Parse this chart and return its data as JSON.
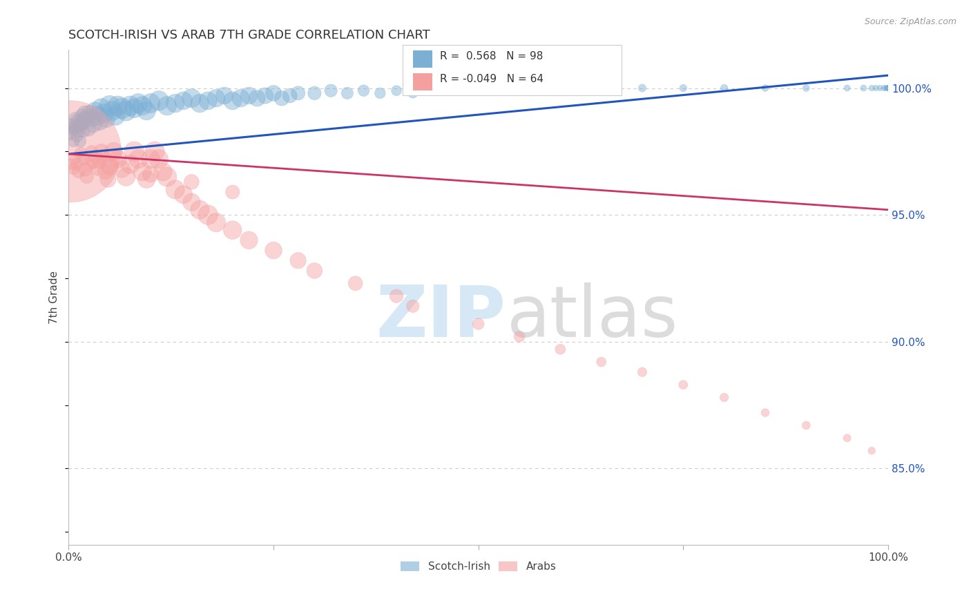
{
  "title": "SCOTCH-IRISH VS ARAB 7TH GRADE CORRELATION CHART",
  "source": "Source: ZipAtlas.com",
  "ylabel": "7th Grade",
  "y_labels": [
    "85.0%",
    "90.0%",
    "95.0%",
    "100.0%"
  ],
  "y_label_vals": [
    0.85,
    0.9,
    0.95,
    1.0
  ],
  "legend_blue_label": "Scotch-Irish",
  "legend_pink_label": "Arabs",
  "r_blue": 0.568,
  "n_blue": 98,
  "r_pink": -0.049,
  "n_pink": 64,
  "blue_color": "#7BAFD4",
  "pink_color": "#F4A0A0",
  "blue_line_color": "#2255BB",
  "pink_line_color": "#CC3366",
  "xlim": [
    0.0,
    1.0
  ],
  "ylim": [
    0.82,
    1.015
  ],
  "blue_trend_x": [
    0.0,
    1.0
  ],
  "blue_trend_y": [
    0.974,
    1.005
  ],
  "pink_trend_x": [
    0.0,
    1.0
  ],
  "pink_trend_y": [
    0.974,
    0.952
  ],
  "blue_x": [
    0.002,
    0.003,
    0.004,
    0.005,
    0.006,
    0.007,
    0.008,
    0.009,
    0.01,
    0.011,
    0.012,
    0.013,
    0.014,
    0.015,
    0.016,
    0.017,
    0.018,
    0.019,
    0.02,
    0.022,
    0.024,
    0.026,
    0.028,
    0.03,
    0.032,
    0.035,
    0.038,
    0.04,
    0.043,
    0.046,
    0.05,
    0.053,
    0.057,
    0.06,
    0.065,
    0.07,
    0.075,
    0.08,
    0.085,
    0.09,
    0.095,
    0.1,
    0.11,
    0.12,
    0.13,
    0.14,
    0.15,
    0.16,
    0.17,
    0.18,
    0.19,
    0.2,
    0.21,
    0.22,
    0.23,
    0.24,
    0.25,
    0.26,
    0.27,
    0.28,
    0.3,
    0.32,
    0.34,
    0.36,
    0.38,
    0.4,
    0.42,
    0.44,
    0.46,
    0.48,
    0.5,
    0.55,
    0.6,
    0.65,
    0.7,
    0.75,
    0.8,
    0.85,
    0.9,
    0.95,
    0.97,
    0.98,
    0.985,
    0.99,
    0.995,
    0.997,
    0.998,
    0.999,
    1.0,
    1.0,
    1.0,
    1.0,
    1.0,
    1.0,
    1.0,
    1.0,
    1.0,
    1.0
  ],
  "blue_y": [
    0.982,
    0.984,
    0.986,
    0.983,
    0.979,
    0.985,
    0.988,
    0.984,
    0.981,
    0.987,
    0.985,
    0.983,
    0.979,
    0.986,
    0.989,
    0.986,
    0.983,
    0.988,
    0.99,
    0.988,
    0.984,
    0.99,
    0.988,
    0.986,
    0.991,
    0.989,
    0.987,
    0.992,
    0.99,
    0.988,
    0.993,
    0.991,
    0.989,
    0.993,
    0.992,
    0.991,
    0.993,
    0.992,
    0.994,
    0.993,
    0.991,
    0.994,
    0.995,
    0.993,
    0.994,
    0.995,
    0.996,
    0.994,
    0.995,
    0.996,
    0.997,
    0.995,
    0.996,
    0.997,
    0.996,
    0.997,
    0.998,
    0.996,
    0.997,
    0.998,
    0.998,
    0.999,
    0.998,
    0.999,
    0.998,
    0.999,
    0.998,
    0.999,
    1.0,
    0.999,
    1.0,
    1.0,
    1.0,
    1.0,
    1.0,
    1.0,
    1.0,
    1.0,
    1.0,
    1.0,
    1.0,
    1.0,
    1.0,
    1.0,
    1.0,
    1.0,
    1.0,
    1.0,
    1.0,
    1.0,
    1.0,
    1.0,
    1.0,
    1.0,
    1.0,
    1.0,
    1.0,
    1.0
  ],
  "blue_s": [
    25,
    20,
    18,
    16,
    20,
    22,
    25,
    28,
    22,
    30,
    28,
    25,
    22,
    35,
    30,
    28,
    25,
    32,
    38,
    40,
    35,
    42,
    45,
    50,
    48,
    55,
    52,
    60,
    55,
    50,
    65,
    58,
    55,
    60,
    65,
    62,
    60,
    55,
    58,
    55,
    52,
    58,
    60,
    55,
    52,
    50,
    55,
    52,
    50,
    48,
    45,
    50,
    48,
    45,
    42,
    40,
    38,
    35,
    32,
    30,
    28,
    25,
    22,
    20,
    18,
    16,
    15,
    14,
    13,
    12,
    11,
    10,
    10,
    9,
    9,
    8,
    8,
    7,
    7,
    6,
    6,
    5,
    5,
    5,
    5,
    4,
    4,
    4,
    4,
    4,
    4,
    4,
    4,
    4,
    4,
    4,
    4,
    4
  ],
  "pink_x": [
    0.002,
    0.004,
    0.006,
    0.008,
    0.01,
    0.012,
    0.015,
    0.018,
    0.02,
    0.022,
    0.025,
    0.028,
    0.03,
    0.033,
    0.035,
    0.038,
    0.04,
    0.042,
    0.045,
    0.048,
    0.05,
    0.055,
    0.06,
    0.065,
    0.07,
    0.075,
    0.08,
    0.085,
    0.09,
    0.095,
    0.1,
    0.105,
    0.11,
    0.115,
    0.12,
    0.13,
    0.14,
    0.15,
    0.16,
    0.17,
    0.18,
    0.2,
    0.22,
    0.25,
    0.28,
    0.3,
    0.35,
    0.4,
    0.42,
    0.5,
    0.55,
    0.6,
    0.65,
    0.7,
    0.75,
    0.8,
    0.85,
    0.9,
    0.95,
    0.98,
    0.05,
    0.1,
    0.15,
    0.2
  ],
  "pink_y": [
    0.975,
    0.97,
    0.968,
    0.972,
    0.97,
    0.967,
    0.974,
    0.972,
    0.968,
    0.965,
    0.97,
    0.975,
    0.971,
    0.973,
    0.968,
    0.971,
    0.975,
    0.973,
    0.967,
    0.964,
    0.97,
    0.975,
    0.972,
    0.968,
    0.965,
    0.97,
    0.975,
    0.972,
    0.967,
    0.964,
    0.972,
    0.975,
    0.972,
    0.967,
    0.965,
    0.96,
    0.958,
    0.955,
    0.952,
    0.95,
    0.947,
    0.944,
    0.94,
    0.936,
    0.932,
    0.928,
    0.923,
    0.918,
    0.914,
    0.907,
    0.902,
    0.897,
    0.892,
    0.888,
    0.883,
    0.878,
    0.872,
    0.867,
    0.862,
    0.857,
    0.969,
    0.966,
    0.963,
    0.959
  ],
  "pink_s": [
    1600,
    20,
    18,
    20,
    22,
    25,
    28,
    25,
    30,
    28,
    25,
    22,
    30,
    28,
    25,
    30,
    35,
    32,
    38,
    40,
    45,
    50,
    48,
    45,
    52,
    55,
    60,
    55,
    50,
    48,
    55,
    60,
    55,
    52,
    58,
    55,
    50,
    48,
    55,
    60,
    55,
    52,
    48,
    45,
    40,
    38,
    32,
    28,
    25,
    20,
    18,
    16,
    14,
    13,
    12,
    11,
    10,
    10,
    9,
    8,
    45,
    40,
    35,
    30
  ]
}
